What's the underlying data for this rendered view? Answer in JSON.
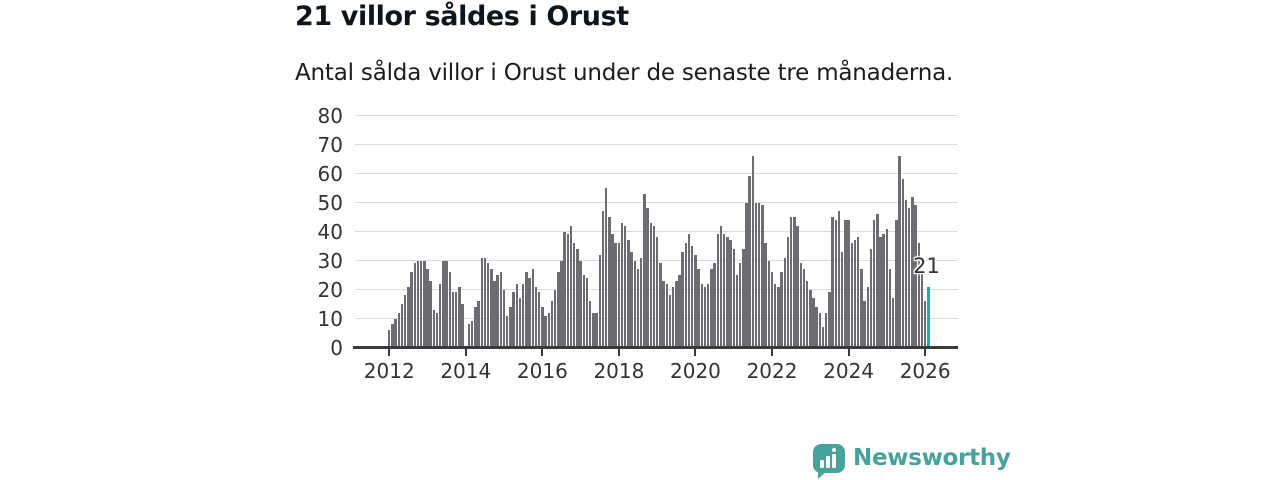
{
  "chart_data": {
    "type": "bar",
    "title": "21 villor såldes i Orust",
    "subtitle": "Antal sålda villor i Orust under de senaste tre månaderna.",
    "xlabel": "",
    "ylabel": "",
    "ylim": [
      0,
      80
    ],
    "y_ticks": [
      0,
      10,
      20,
      30,
      40,
      50,
      60,
      70,
      80
    ],
    "x_tick_labels": [
      "2012",
      "2014",
      "2016",
      "2018",
      "2020",
      "2022",
      "2024",
      "2026"
    ],
    "grid": "horizontal",
    "legend": "none",
    "x_frequency": "monthly, Jan 2012 – Feb 2026",
    "values": [
      6,
      8,
      10,
      12,
      15,
      18,
      21,
      26,
      29,
      30,
      30,
      30,
      27,
      23,
      13,
      12,
      22,
      30,
      30,
      26,
      19,
      19,
      21,
      15,
      0,
      8,
      9,
      14,
      16,
      31,
      31,
      29,
      27,
      23,
      25,
      26,
      20,
      11,
      14,
      19,
      22,
      17,
      22,
      26,
      24,
      27,
      21,
      19,
      14,
      11,
      12,
      16,
      20,
      26,
      30,
      40,
      39,
      42,
      36,
      34,
      30,
      25,
      24,
      16,
      12,
      12,
      32,
      47,
      55,
      45,
      39,
      36,
      36,
      43,
      42,
      37,
      33,
      30,
      27,
      31,
      53,
      48,
      43,
      42,
      38,
      29,
      23,
      22,
      18,
      21,
      23,
      25,
      33,
      36,
      39,
      35,
      32,
      27,
      22,
      21,
      22,
      27,
      29,
      39,
      42,
      39,
      38,
      37,
      34,
      25,
      29,
      34,
      50,
      59,
      66,
      50,
      50,
      49,
      36,
      30,
      26,
      22,
      21,
      26,
      31,
      38,
      45,
      45,
      42,
      29,
      27,
      23,
      20,
      17,
      14,
      12,
      7,
      12,
      19,
      45,
      44,
      47,
      33,
      44,
      44,
      36,
      37,
      38,
      27,
      16,
      21,
      34,
      44,
      46,
      38,
      39,
      41,
      27,
      17,
      44,
      66,
      58,
      51,
      48,
      52,
      49,
      36,
      26,
      16,
      21
    ],
    "highlight_last_bar": true,
    "annotation": {
      "text": "21",
      "value": 21
    },
    "bar_color": "#6c6c71",
    "highlight_color": "#18b2a8",
    "gridline_color": "#dcdcdc",
    "axis_color": "#3a3a3a",
    "tick_label_color": "#333333"
  },
  "footer": {
    "brand": "Newsworthy",
    "brand_color": "#46a39b",
    "logo_icon": "bar-chart-speech-bubble-icon"
  }
}
